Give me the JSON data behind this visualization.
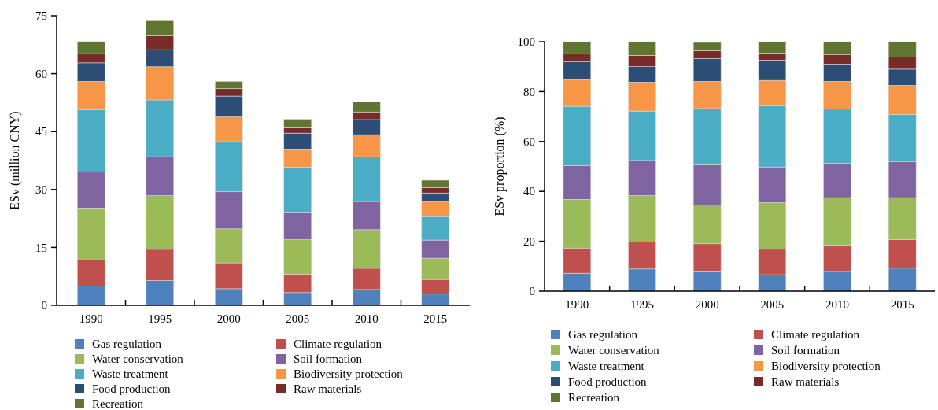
{
  "chart_data": [
    {
      "type": "bar",
      "stacked": true,
      "ylabel": "ESv (million CNY)",
      "categories": [
        "1990",
        "1995",
        "2000",
        "2005",
        "2010",
        "2015"
      ],
      "ylim": [
        0,
        75
      ],
      "yticks": [
        0,
        15,
        30,
        45,
        60,
        75
      ],
      "legend": "bottom",
      "grid": false,
      "series": [
        {
          "name": "Gas regulation",
          "color": "#4f81bd",
          "values": [
            5.0,
            6.4,
            4.3,
            3.3,
            4.1,
            2.9
          ]
        },
        {
          "name": "Climate regulation",
          "color": "#c0504d",
          "values": [
            6.8,
            8.1,
            6.7,
            4.8,
            5.5,
            3.8
          ]
        },
        {
          "name": "Water conservation",
          "color": "#9bbb59",
          "values": [
            13.4,
            13.9,
            8.8,
            8.9,
            10.0,
            5.5
          ]
        },
        {
          "name": "Soil formation",
          "color": "#8064a2",
          "values": [
            9.3,
            10.1,
            9.6,
            7.0,
            7.3,
            4.7
          ]
        },
        {
          "name": "Waste treatment",
          "color": "#4bacc6",
          "values": [
            16.2,
            14.7,
            13.0,
            11.8,
            11.6,
            6.1
          ]
        },
        {
          "name": "Biodiversity protection",
          "color": "#f79646",
          "values": [
            7.3,
            8.6,
            6.4,
            4.7,
            5.7,
            3.9
          ]
        },
        {
          "name": "Food production",
          "color": "#2c4d75",
          "values": [
            4.8,
            4.4,
            5.4,
            4.1,
            3.9,
            2.2
          ]
        },
        {
          "name": "Raw materials",
          "color": "#772c2a",
          "values": [
            2.4,
            3.6,
            1.9,
            1.4,
            2.0,
            1.4
          ]
        },
        {
          "name": "Recreation",
          "color": "#5f7530",
          "values": [
            3.1,
            3.9,
            1.9,
            2.2,
            2.6,
            1.9
          ]
        }
      ]
    },
    {
      "type": "bar",
      "stacked": true,
      "ylabel": "ESv proportion (%)",
      "categories": [
        "1990",
        "1995",
        "2000",
        "2005",
        "2010",
        "2015"
      ],
      "ylim": [
        0,
        100
      ],
      "yticks": [
        0,
        20,
        40,
        60,
        80,
        100
      ],
      "legend": "bottom",
      "grid": false,
      "series": [
        {
          "name": "Gas regulation",
          "color": "#4f81bd",
          "values": [
            7.2,
            8.9,
            7.7,
            6.6,
            7.9,
            9.2
          ]
        },
        {
          "name": "Climate regulation",
          "color": "#c0504d",
          "values": [
            10.1,
            10.8,
            11.3,
            10.2,
            10.5,
            11.4
          ]
        },
        {
          "name": "Water conservation",
          "color": "#9bbb59",
          "values": [
            19.5,
            18.6,
            15.6,
            18.7,
            19.1,
            16.9
          ]
        },
        {
          "name": "Soil formation",
          "color": "#8064a2",
          "values": [
            13.6,
            14.1,
            16.1,
            14.3,
            13.7,
            14.5
          ]
        },
        {
          "name": "Waste treatment",
          "color": "#4bacc6",
          "values": [
            23.7,
            19.8,
            22.5,
            24.6,
            21.9,
            18.8
          ]
        },
        {
          "name": "Biodiversity protection",
          "color": "#f79646",
          "values": [
            10.7,
            11.6,
            10.9,
            10.1,
            11.0,
            11.7
          ]
        },
        {
          "name": "Food production",
          "color": "#2c4d75",
          "values": [
            7.1,
            6.2,
            9.1,
            8.1,
            6.9,
            6.5
          ]
        },
        {
          "name": "Raw materials",
          "color": "#772c2a",
          "values": [
            3.3,
            4.5,
            3.2,
            2.9,
            3.9,
            4.9
          ]
        },
        {
          "name": "Recreation",
          "color": "#5f7530",
          "values": [
            4.8,
            5.5,
            3.3,
            4.5,
            5.1,
            6.1
          ]
        }
      ]
    }
  ]
}
